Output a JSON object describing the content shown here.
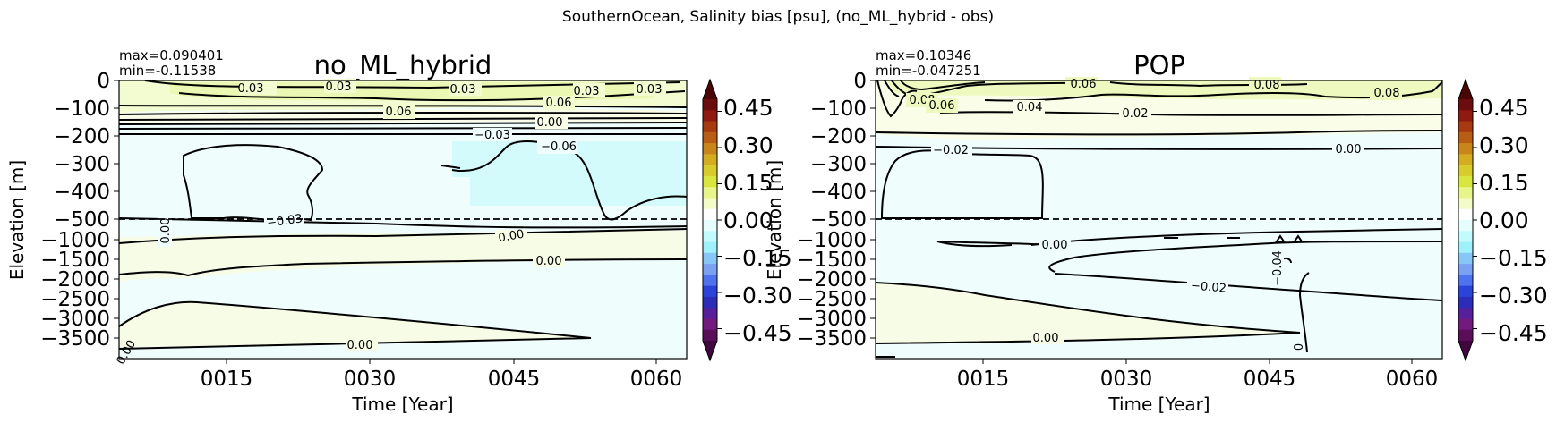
{
  "figure": {
    "suptitle": "SouthernOcean, Salinity bias [psu], (no_ML_hybrid - obs)"
  },
  "colorbar": {
    "ticks": [
      "0.45",
      "0.30",
      "0.15",
      "0.00",
      "−0.15",
      "−0.30",
      "−0.45"
    ],
    "colors_top_to_bottom": [
      "#6b0d0d",
      "#8e1a10",
      "#a83a12",
      "#b95c14",
      "#c8851a",
      "#d3ac22",
      "#d8cb2c",
      "#d8e63e",
      "#e8f58a",
      "#f3fbc8",
      "#ffffff",
      "#e6fdfd",
      "#c2fbfd",
      "#9ff0fb",
      "#86c7f7",
      "#7ba2f2",
      "#4f73ee",
      "#2a43d9",
      "#2b2cb7",
      "#56209a",
      "#731a7f",
      "#5a0e5a"
    ],
    "extend_top": "#4a0606",
    "extend_bottom": "#3f063f"
  },
  "chart_data": [
    {
      "type": "heatmap",
      "title": "no_ML_hybrid",
      "stats": [
        "max=0.090401",
        "min=-0.11538"
      ],
      "xlabel": "Time [Year]",
      "ylabel": "Elevation [m]",
      "x_ticks": [
        "0015",
        "0030",
        "0045",
        "0060"
      ],
      "y_ticks_upper": [
        "0",
        "−100",
        "−200",
        "−300",
        "−400",
        "−500"
      ],
      "y_ticks_lower": [
        "−1000",
        "−1500",
        "−2000",
        "−2500",
        "−3000",
        "−3500"
      ],
      "contour_labels": [
        "0.03",
        "0.03",
        "0.03",
        "0.03",
        "0.03",
        "0.06",
        "0.06",
        "0.00",
        "−0.03",
        "−0.06",
        "−0.03",
        "0.00",
        "0.00",
        "0.00",
        "0.00",
        "0.00"
      ],
      "vmin": -0.45,
      "vmax": 0.45,
      "split_depth": -500
    },
    {
      "type": "heatmap",
      "title": "POP",
      "stats": [
        "max=0.10346",
        "min=-0.047251"
      ],
      "xlabel": "Time [Year]",
      "ylabel": "Elevation [m]",
      "x_ticks": [
        "0015",
        "0030",
        "0045",
        "0060"
      ],
      "y_ticks_upper": [
        "0",
        "−100",
        "−200",
        "−300",
        "−400",
        "−500"
      ],
      "y_ticks_lower": [
        "−1000",
        "−1500",
        "−2000",
        "−2500",
        "−3000",
        "−3500"
      ],
      "contour_labels": [
        "0.06",
        "0.08",
        "0.08",
        "0.08",
        "0.06",
        "0.04",
        "0.02",
        "−0.02",
        "0.00",
        "0.00",
        "−0.02",
        "−0.04",
        "0.00",
        "0"
      ],
      "vmin": -0.45,
      "vmax": 0.45,
      "split_depth": -500
    }
  ]
}
